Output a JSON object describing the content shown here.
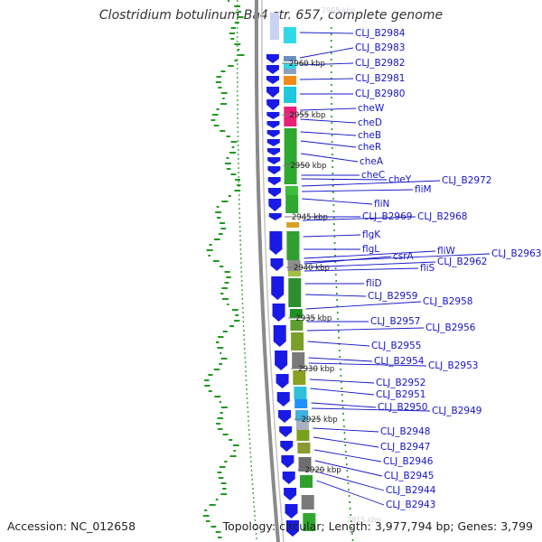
{
  "title": "Clostridium botulinum Ba4 str. 657, complete genome",
  "footer": {
    "accession": "Accession: NC_012658",
    "topology": "Topology: circular; Length: 3,977,794 bp; Genes: 3,799"
  },
  "kbp_ticks": [
    "2960 kbp",
    "2955 kbp",
    "2950 kbp",
    "2945 kbp",
    "2940 kbp",
    "2935 kbp",
    "2930 kbp",
    "2925 kbp",
    "2920 kbp"
  ],
  "faint_ticks": [
    "2965 kbp",
    "2915 kbp"
  ],
  "gene_labels": [
    "CLJ_B2984",
    "CLJ_B2983",
    "CLJ_B2982",
    "CLJ_B2981",
    "CLJ_B2980",
    "cheW",
    "cheD",
    "cheB",
    "cheR",
    "cheA",
    "cheC",
    "cheY",
    "CLJ_B2972",
    "fliM",
    "fliN",
    "CLJ_B2969",
    "CLJ_B2968",
    "flgK",
    "flgL",
    "fliW",
    "CLJ_B2963",
    "csrA",
    "CLJ_B2962",
    "fliS",
    "fliD",
    "CLJ_B2959",
    "CLJ_B2958",
    "CLJ_B2957",
    "CLJ_B2956",
    "CLJ_B2955",
    "CLJ_B2954",
    "CLJ_B2953",
    "CLJ_B2952",
    "CLJ_B2951",
    "CLJ_B2950",
    "CLJ_B2949",
    "CLJ_B2948",
    "CLJ_B2947",
    "CLJ_B2946",
    "CLJ_B2945",
    "CLJ_B2944",
    "CLJ_B2943"
  ],
  "colors": {
    "forward_cds": "#1a1ae6",
    "backbone": "#8a8a8a",
    "label_line": "#1515c8",
    "gc_plot": "#1f9a1f"
  }
}
